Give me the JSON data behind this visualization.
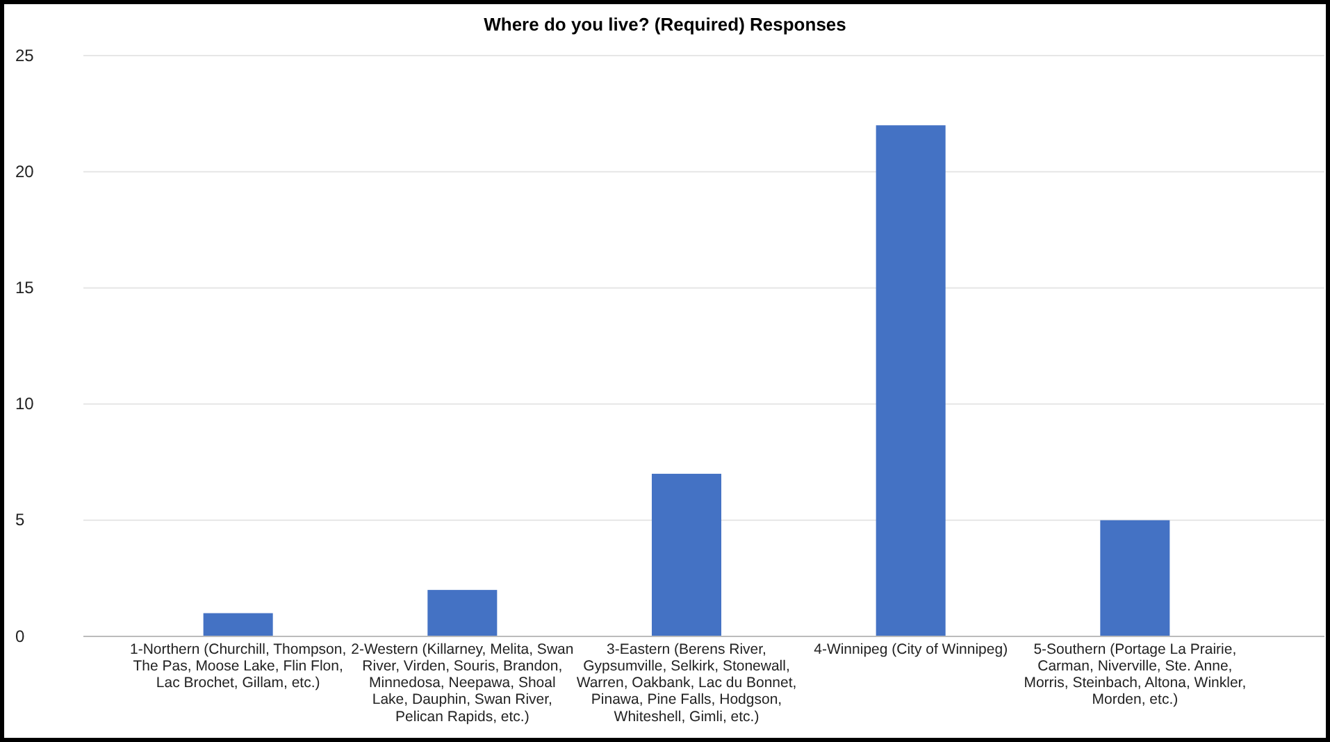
{
  "chart_data": {
    "type": "bar",
    "title": "Where do you live? (Required) Responses",
    "categories": [
      "1-Northern (Churchill, Thompson, The Pas, Moose Lake, Flin Flon, Lac Brochet, Gillam, etc.)",
      "2-Western (Killarney, Melita, Swan River, Virden, Souris, Brandon, Minnedosa, Neepawa, Shoal Lake, Dauphin, Swan River, Pelican Rapids, etc.)",
      "3-Eastern (Berens River, Gypsumville, Selkirk, Stonewall, Warren, Oakbank, Lac du Bonnet, Pinawa, Pine Falls, Hodgson, Whiteshell, Gimli, etc.)",
      "4-Winnipeg (City of Winnipeg)",
      "5-Southern (Portage La Prairie, Carman, Niverville, Ste. Anne, Morris, Steinbach, Altona, Winkler, Morden, etc.)"
    ],
    "values": [
      1,
      2,
      7,
      22,
      5
    ],
    "color": "#4472c4",
    "ylim": [
      0,
      25
    ],
    "yticks": [
      0,
      5,
      10,
      15,
      20,
      25
    ],
    "grid": "y"
  }
}
